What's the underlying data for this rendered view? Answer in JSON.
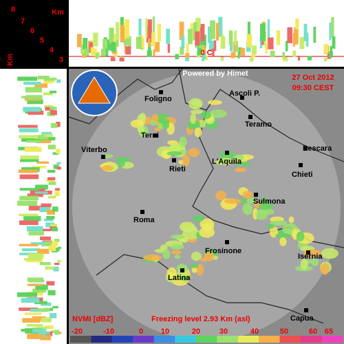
{
  "height_panel": {
    "unit": "Km",
    "unit_vertical": "Km",
    "levels": [
      8,
      7,
      6,
      5,
      4,
      3
    ]
  },
  "freezing_marker": "0 C",
  "header": {
    "credit": "Powered by Himet",
    "date": "27 Oct 2012",
    "time": "09:30 CEST"
  },
  "cities": [
    "Foligno",
    "Ascoli P.",
    "Teramo",
    "Terni",
    "Pescara",
    "Viterbo",
    "L'Aquila",
    "Rieti",
    "Chieti",
    "Sulmona",
    "Roma",
    "Frosinone",
    "Isernia",
    "Latina",
    "Capua"
  ],
  "footer": {
    "product": "NVMI [dBZ]",
    "freezing_level": "Freezing level  2.93 Km (asl)"
  },
  "scale": {
    "labels": [
      -20,
      -10,
      0,
      10,
      20,
      30,
      40,
      50,
      60,
      65
    ]
  }
}
